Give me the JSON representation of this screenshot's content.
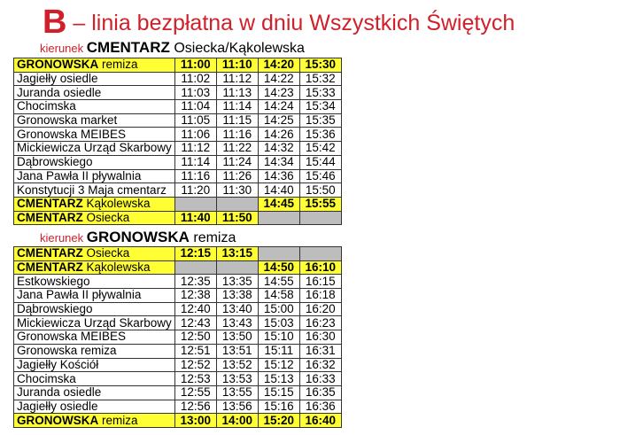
{
  "title": {
    "letter": "B",
    "text": " – linia bezpłatna w dniu Wszystkich Świętych"
  },
  "colors": {
    "accent": "#d0202a",
    "highlight": "#ffff33",
    "empty": "#bdbdbd"
  },
  "dir1": {
    "prefix": "kierunek ",
    "bold": "CMENTARZ",
    "rest": " Osiecka/Kąkolewska"
  },
  "dir2": {
    "prefix": "kierunek ",
    "bold": "GRONOWSKA",
    "rest": " remiza"
  },
  "table1": [
    {
      "b": "GRONOWSKA",
      "n": " remiza",
      "t": [
        "11:00",
        "11:10",
        "14:20",
        "15:30"
      ],
      "hl": true
    },
    {
      "n": "Jagiełły osiedle",
      "t": [
        "11:02",
        "11:12",
        "14:22",
        "15:32"
      ]
    },
    {
      "n": "Juranda osiedle",
      "t": [
        "11:03",
        "11:13",
        "14:23",
        "15:33"
      ]
    },
    {
      "n": "Chocimska",
      "t": [
        "11:04",
        "11:14",
        "14:24",
        "15:34"
      ]
    },
    {
      "n": "Gronowska market",
      "t": [
        "11:05",
        "11:15",
        "14:25",
        "15:35"
      ]
    },
    {
      "n": "Gronowska MEIBES",
      "t": [
        "11:06",
        "11:16",
        "14:26",
        "15:36"
      ]
    },
    {
      "n": "Mickiewicza Urząd Skarbowy",
      "t": [
        "11:12",
        "11:22",
        "14:32",
        "15:42"
      ]
    },
    {
      "n": "Dąbrowskiego",
      "t": [
        "11:14",
        "11:24",
        "14:34",
        "15:44"
      ]
    },
    {
      "n": "Jana Pawła II pływalnia",
      "t": [
        "11:16",
        "11:26",
        "14:36",
        "15:46"
      ]
    },
    {
      "n": "Konstytucji 3 Maja cmentarz",
      "t": [
        "11:20",
        "11:30",
        "14:40",
        "15:50"
      ]
    },
    {
      "b": "CMENTARZ",
      "n": " Kąkolewska",
      "t": [
        "",
        "",
        "14:45",
        "15:55"
      ],
      "hl": true
    },
    {
      "b": "CMENTARZ",
      "n": " Osiecka",
      "t": [
        "11:40",
        "11:50",
        "",
        ""
      ],
      "hl": true
    }
  ],
  "table2": [
    {
      "b": "CMENTARZ",
      "n": " Osiecka",
      "t": [
        "12:15",
        "13:15",
        "",
        ""
      ],
      "hl": true
    },
    {
      "b": "CMENTARZ",
      "n": " Kąkolewska",
      "t": [
        "",
        "",
        "14:50",
        "16:10"
      ],
      "hl": true
    },
    {
      "n": "Estkowskiego",
      "t": [
        "12:35",
        "13:35",
        "14:55",
        "16:15"
      ]
    },
    {
      "n": "Jana Pawła II pływalnia",
      "t": [
        "12:38",
        "13:38",
        "14:58",
        "16:18"
      ]
    },
    {
      "n": "Dąbrowskiego",
      "t": [
        "12:40",
        "13:40",
        "15:00",
        "16:20"
      ]
    },
    {
      "n": "Mickiewicza Urząd Skarbowy",
      "t": [
        "12:43",
        "13:43",
        "15:03",
        "16:23"
      ]
    },
    {
      "n": "Gronowska MEIBES",
      "t": [
        "12:50",
        "13:50",
        "15:10",
        "16:30"
      ]
    },
    {
      "n": "Gronowska remiza",
      "t": [
        "12:51",
        "13:51",
        "15:11",
        "16:31"
      ]
    },
    {
      "n": "Jagiełły Kościół",
      "t": [
        "12:52",
        "13:52",
        "15:12",
        "16:32"
      ]
    },
    {
      "n": "Chocimska",
      "t": [
        "12:53",
        "13:53",
        "15:13",
        "16:33"
      ]
    },
    {
      "n": "Juranda osiedle",
      "t": [
        "12:55",
        "13:55",
        "15:15",
        "16:35"
      ]
    },
    {
      "n": "Jagiełły osiedle",
      "t": [
        "12:56",
        "13:56",
        "15:16",
        "16:36"
      ]
    },
    {
      "b": "GRONOWSKA",
      "n": " remiza",
      "t": [
        "13:00",
        "14:00",
        "15:20",
        "16:40"
      ],
      "hl": true
    }
  ]
}
